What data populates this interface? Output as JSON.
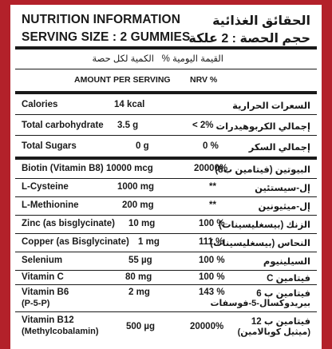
{
  "header": {
    "title_en": "NUTRITION INFORMATION",
    "title_ar": "الحقائق الغذائية",
    "serving_en": "SERVING SIZE : 2 GUMMIES",
    "serving_ar": "حجم الحصة : 2 علكة"
  },
  "columns": {
    "nrv_ar": "القيمة اليومية %",
    "amount_ar": "الكمية لكل حصة",
    "amount_en": "AMOUNT PER SERVING",
    "nrv_en": "NRV %"
  },
  "rows": [
    {
      "name_en": "Calories",
      "amount": "14 kcal",
      "nrv": "",
      "name_ar": "السعرات الحرارية"
    },
    {
      "name_en": "Total carbohydrate",
      "amount": "3.5 g",
      "nrv": "< 2%",
      "name_ar": "إجمالي الكربوهيدرات"
    },
    {
      "name_en": "Total Sugars",
      "amount": "0 g",
      "nrv": "0 %",
      "name_ar": "إجمالي السكر"
    },
    {
      "name_en": "Biotin (Vitamin B8)",
      "amount": "10000 mcg",
      "nrv": "20000%",
      "name_ar": "البيوتين (فيتامين ب8)"
    },
    {
      "name_en": "L-Cysteine",
      "amount": "1000 mg",
      "nrv": "**",
      "name_ar": "إل-سيستئين"
    },
    {
      "name_en": "L-Methionine",
      "amount": "200 mg",
      "nrv": "**",
      "name_ar": "إل-ميثيونين"
    },
    {
      "name_en": "Zinc (as bisglycinate)",
      "amount": "10 mg",
      "nrv": "100 %",
      "name_ar": "الزنك (بيسغليسينات)"
    },
    {
      "name_en": "Copper (as Bisglycinate)",
      "amount": "1 mg",
      "nrv": "111 %",
      "name_ar": "النحاس (بيسغليسينات)"
    },
    {
      "name_en": "Selenium",
      "amount": "55 µg",
      "nrv": "100 %",
      "name_ar": "السيلينيوم"
    },
    {
      "name_en": "Vitamin C",
      "amount": "80 mg",
      "nrv": "100 %",
      "name_ar": "فيتامين C"
    },
    {
      "name_en": "Vitamin B6",
      "name_en2": "(P-5-P)",
      "amount": "2 mg",
      "nrv": "143 %",
      "name_ar": "فيتامين ب 6",
      "name_ar2": "بيريدوكسال-5-فوسفات"
    },
    {
      "name_en": "Vitamin B12",
      "name_en2": "(Methylcobalamin)",
      "amount": "500 µg",
      "nrv": "20000%",
      "name_ar": "فيتامين ب 12",
      "name_ar2": "(ميثيل كوبالامين)"
    }
  ]
}
